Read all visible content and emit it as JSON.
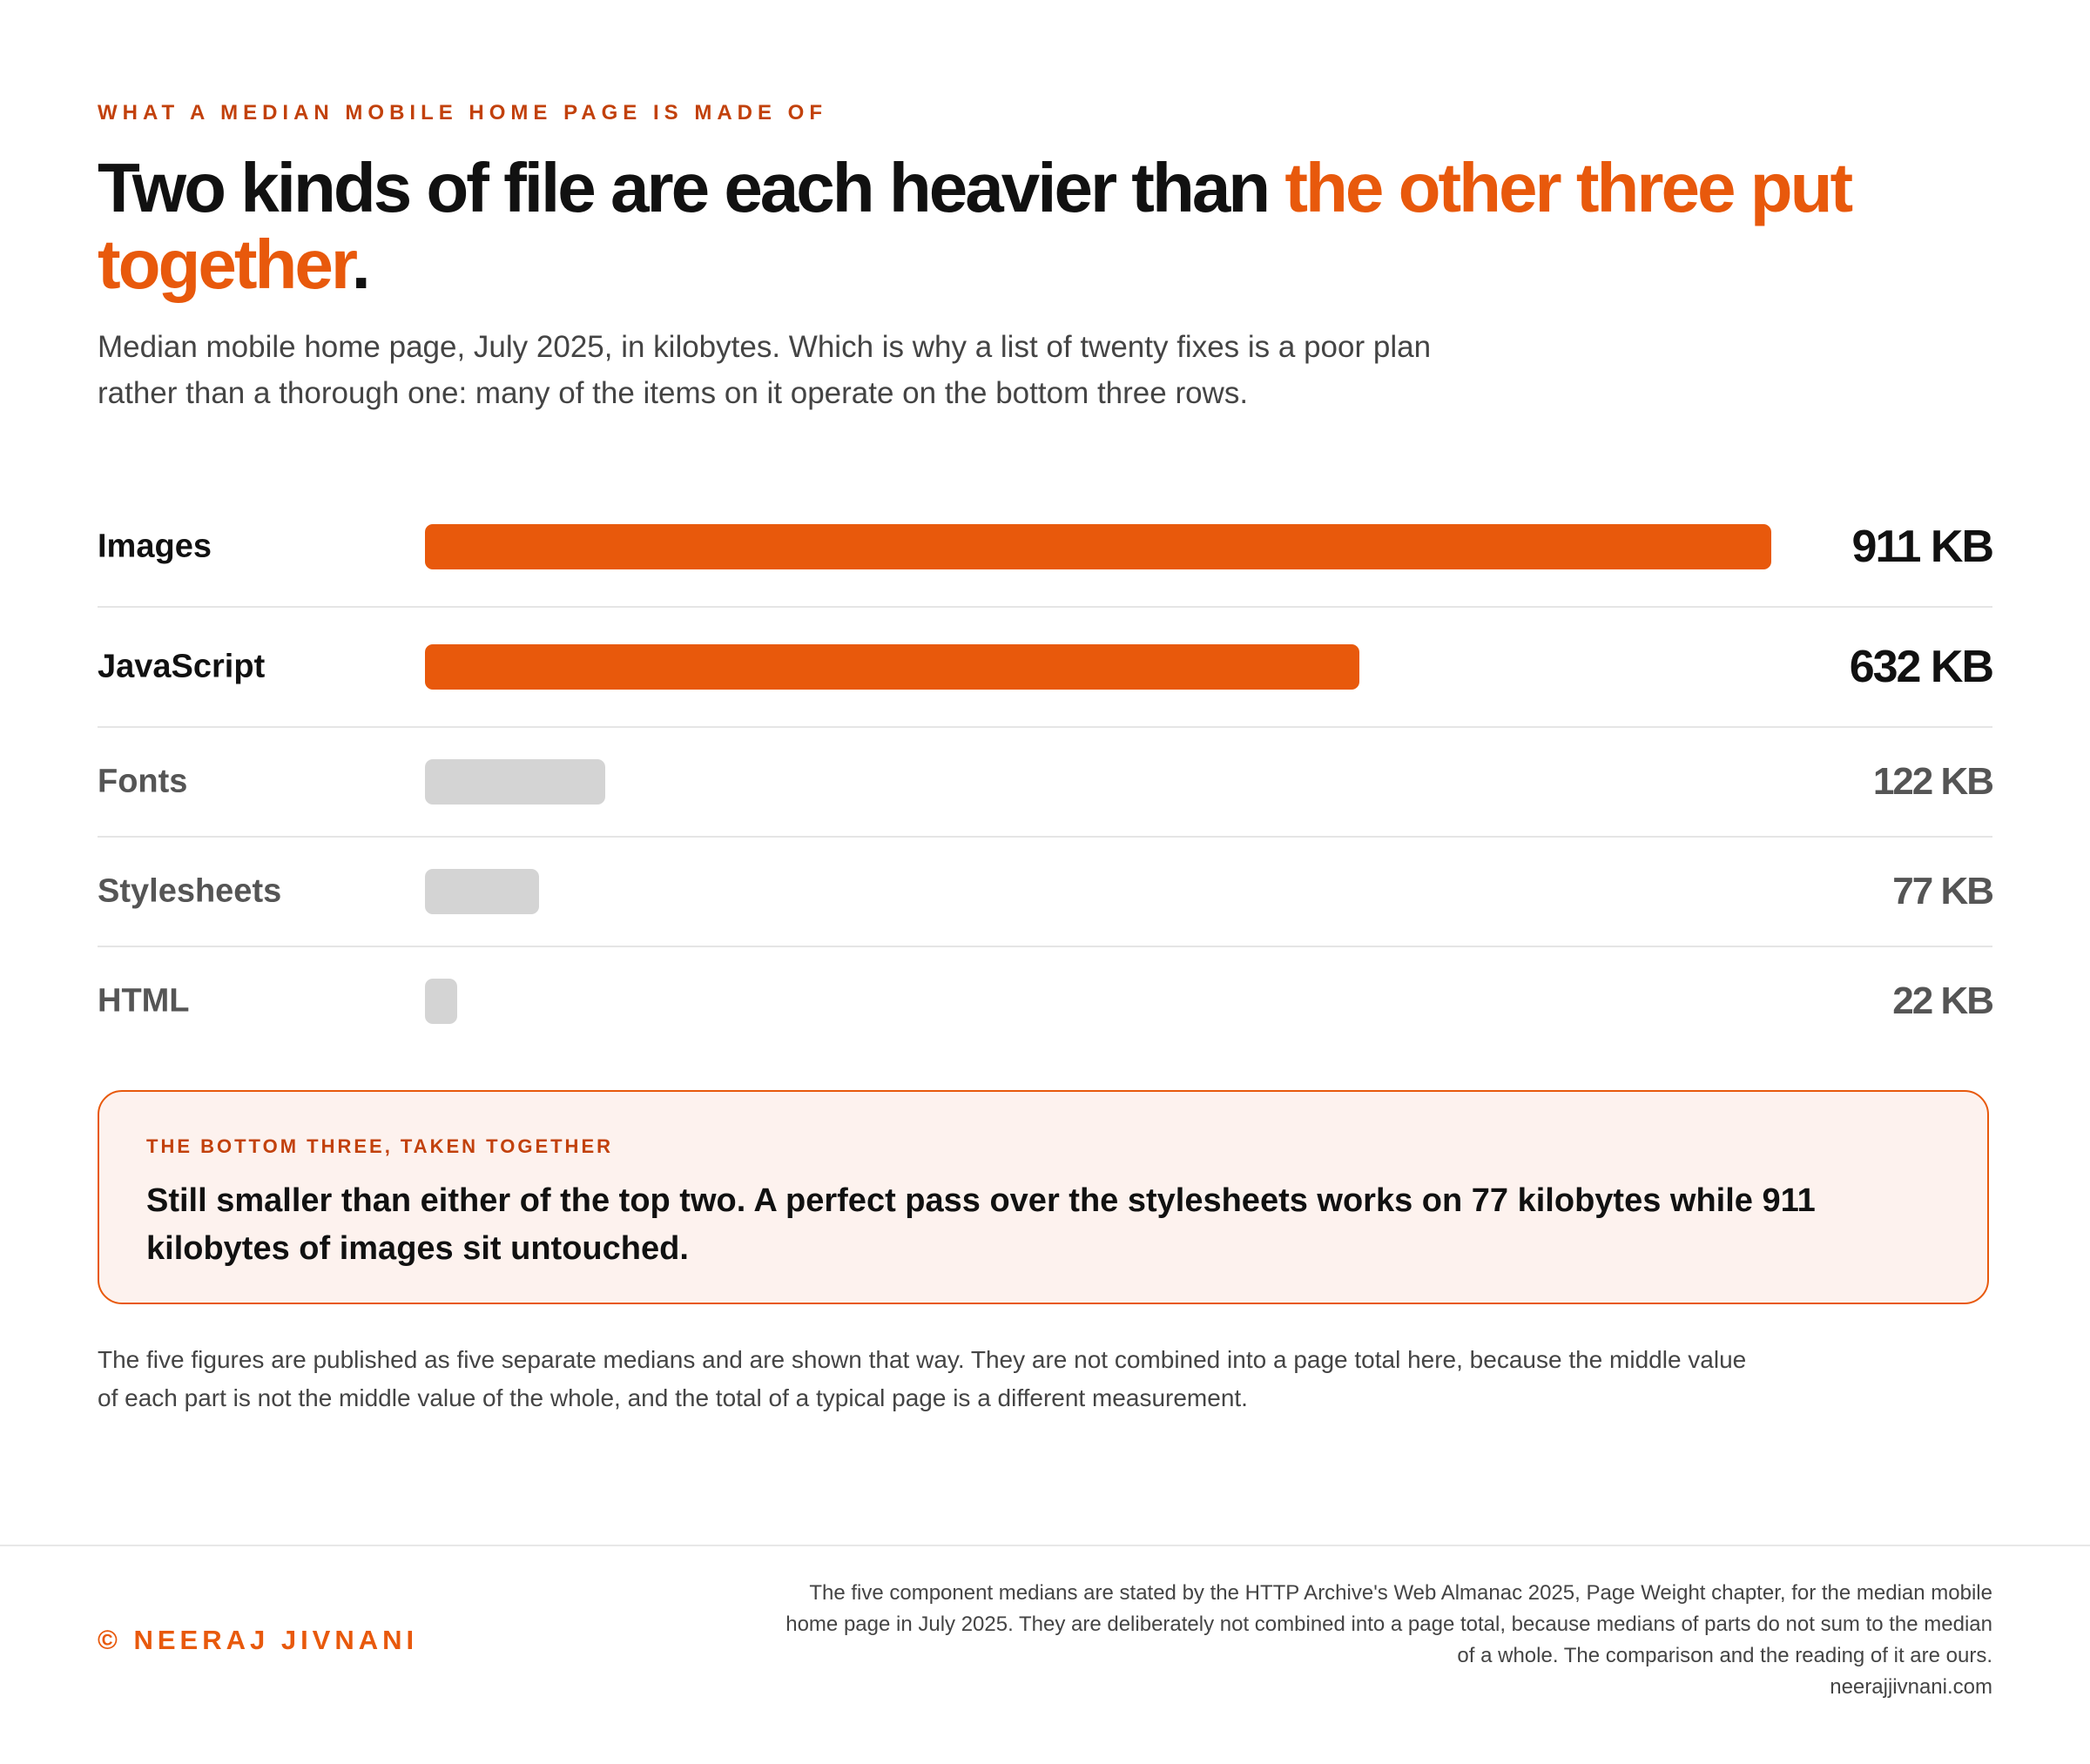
{
  "kicker": "WHAT A MEDIAN MOBILE HOME PAGE IS MADE OF",
  "headline": {
    "part1": "Two kinds of file are each heavier than ",
    "accent": "the other three put together",
    "end": "."
  },
  "subhead": "Median mobile home page, July 2025, in kilobytes. Which is why a list of twenty fixes is a poor plan rather than a thorough one: many of the items on it operate on the bottom three rows.",
  "chart_data": {
    "type": "bar",
    "orientation": "horizontal",
    "categories": [
      "Images",
      "JavaScript",
      "Fonts",
      "Stylesheets",
      "HTML"
    ],
    "values": [
      911,
      632,
      122,
      77,
      22
    ],
    "value_labels": [
      "911 KB",
      "632 KB",
      "122 KB",
      "77 KB",
      "22 KB"
    ],
    "unit": "KB",
    "xlim": [
      0,
      911
    ],
    "highlight": [
      true,
      true,
      false,
      false,
      false
    ],
    "colors": {
      "highlight": "#e8590c",
      "muted": "#d4d4d4"
    }
  },
  "callout": {
    "kicker": "THE BOTTOM THREE, TAKEN TOGETHER",
    "text": "Still smaller than either of the top two. A perfect pass over the stylesheets works on 77 kilobytes while 911 kilobytes of images sit untouched."
  },
  "note": "The five figures are published as five separate medians and are shown that way. They are not combined into a page total here, because the middle value of each part is not the middle value of the whole, and the total of a typical page is a different measurement.",
  "footer": {
    "credit": "© NEERAJ JIVNANI",
    "source": "The five component medians are stated by the HTTP Archive's Web Almanac 2025, Page Weight chapter, for the median mobile home page in July 2025. They are deliberately not combined into a page total, because medians of parts do not sum to the median of a whole. The comparison and the reading of it are ours.",
    "site": "neerajjivnani.com"
  }
}
